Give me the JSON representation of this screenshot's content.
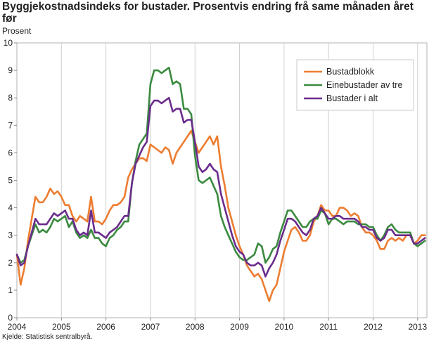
{
  "header": {
    "title": "Byggjekostnadsindeks for bustader. Prosentvis endring frå same månaden året før",
    "unit_label": "Prosent"
  },
  "footer": {
    "source": "Kjelde: Statistisk sentralbyrå."
  },
  "chart_data": {
    "type": "line",
    "title": "Byggjekostnadsindeks for bustader. Prosentvis endring frå same månaden året før",
    "ylabel": "Prosent",
    "xlabel": "",
    "ylim": [
      0,
      10
    ],
    "yticks": [
      "0",
      "1",
      "2",
      "3",
      "4",
      "5",
      "6",
      "7",
      "8",
      "9",
      "10"
    ],
    "x_start": "2004-01",
    "x_end": "2013-05",
    "xticks": [
      "2004",
      "2005",
      "2006",
      "2007",
      "2008",
      "2009",
      "2010",
      "2011",
      "2012",
      "2013"
    ],
    "grid": "vertical",
    "legend_position": "top-right",
    "series": [
      {
        "name": "Bustadblokk",
        "color": "#ed7d31",
        "values": [
          2.3,
          1.2,
          1.8,
          2.8,
          3.6,
          4.4,
          4.2,
          4.2,
          4.4,
          4.7,
          4.5,
          4.6,
          4.4,
          4.1,
          4.1,
          3.7,
          3.5,
          3.7,
          3.6,
          3.5,
          4.4,
          3.5,
          3.5,
          3.4,
          3.6,
          3.9,
          4.1,
          4.1,
          4.2,
          4.4,
          5.1,
          5.4,
          5.6,
          5.8,
          5.8,
          5.7,
          6.3,
          6.2,
          6.1,
          6.0,
          6.2,
          6.1,
          5.6,
          6.0,
          6.2,
          6.4,
          6.6,
          6.8,
          6.4,
          6.0,
          6.2,
          6.4,
          6.6,
          6.3,
          6.6,
          5.5,
          4.8,
          4.0,
          3.5,
          3.0,
          2.6,
          2.3,
          1.9,
          1.7,
          1.5,
          1.6,
          1.4,
          1.0,
          0.6,
          1.0,
          1.2,
          1.8,
          2.4,
          2.8,
          3.2,
          3.3,
          3.1,
          2.8,
          2.8,
          3.0,
          3.5,
          3.7,
          4.1,
          3.9,
          3.9,
          3.7,
          3.7,
          4.0,
          4.0,
          3.9,
          3.7,
          3.8,
          3.7,
          3.3,
          3.1,
          3.1,
          3.0,
          2.8,
          2.5,
          2.5,
          2.8,
          2.9,
          2.8,
          2.9,
          2.8,
          3.0,
          3.0,
          2.7,
          2.8,
          3.0,
          3.0
        ]
      },
      {
        "name": "Einebustader av tre",
        "color": "#3a8a3f",
        "values": [
          2.3,
          2.0,
          2.1,
          2.6,
          3.0,
          3.4,
          3.1,
          3.2,
          3.1,
          3.3,
          3.6,
          3.5,
          3.6,
          3.7,
          3.3,
          3.5,
          3.1,
          2.9,
          3.0,
          2.9,
          3.2,
          2.9,
          2.9,
          2.7,
          2.6,
          2.9,
          3.0,
          3.2,
          3.3,
          3.5,
          3.5,
          4.9,
          5.7,
          6.3,
          6.5,
          6.7,
          8.5,
          9.0,
          9.0,
          8.9,
          9.0,
          9.1,
          8.5,
          8.6,
          8.5,
          7.6,
          7.6,
          7.4,
          5.9,
          5.0,
          4.9,
          5.0,
          5.1,
          4.8,
          4.5,
          3.7,
          3.3,
          3.0,
          2.7,
          2.4,
          2.2,
          2.1,
          2.1,
          2.2,
          2.3,
          2.7,
          2.6,
          2.0,
          2.2,
          2.5,
          2.6,
          3.1,
          3.5,
          3.9,
          3.9,
          3.7,
          3.5,
          3.3,
          3.3,
          3.5,
          3.6,
          3.6,
          3.9,
          3.8,
          3.4,
          3.6,
          3.6,
          3.5,
          3.4,
          3.5,
          3.5,
          3.5,
          3.4,
          3.4,
          3.4,
          3.3,
          3.3,
          3.0,
          2.8,
          3.0,
          3.3,
          3.4,
          3.2,
          3.1,
          3.1,
          3.1,
          3.1,
          2.7,
          2.6,
          2.7,
          2.8
        ]
      },
      {
        "name": "Bustader i alt",
        "color": "#6a2c8c",
        "values": [
          2.3,
          1.9,
          2.0,
          2.6,
          3.1,
          3.6,
          3.4,
          3.4,
          3.4,
          3.6,
          3.8,
          3.7,
          3.8,
          3.9,
          3.6,
          3.6,
          3.2,
          3.0,
          3.1,
          3.0,
          3.9,
          3.1,
          3.1,
          3.0,
          2.9,
          3.1,
          3.2,
          3.3,
          3.5,
          3.7,
          3.7,
          4.9,
          5.6,
          5.9,
          6.2,
          6.4,
          7.7,
          7.9,
          7.9,
          7.8,
          7.9,
          8.0,
          7.5,
          7.6,
          7.6,
          7.1,
          7.2,
          7.2,
          6.4,
          5.5,
          5.3,
          5.4,
          5.6,
          5.4,
          5.3,
          4.5,
          4.0,
          3.5,
          3.0,
          2.6,
          2.4,
          2.3,
          2.0,
          1.9,
          1.9,
          2.0,
          1.9,
          1.5,
          1.8,
          2.0,
          2.3,
          2.8,
          3.2,
          3.6,
          3.6,
          3.5,
          3.3,
          3.1,
          3.0,
          3.2,
          3.6,
          3.7,
          4.0,
          3.8,
          3.6,
          3.6,
          3.7,
          3.7,
          3.6,
          3.6,
          3.6,
          3.6,
          3.5,
          3.3,
          3.3,
          3.2,
          3.2,
          2.9,
          2.8,
          2.9,
          3.2,
          3.2,
          3.0,
          3.0,
          3.0,
          3.0,
          3.0,
          2.7,
          2.7,
          2.8,
          2.9
        ]
      }
    ]
  }
}
